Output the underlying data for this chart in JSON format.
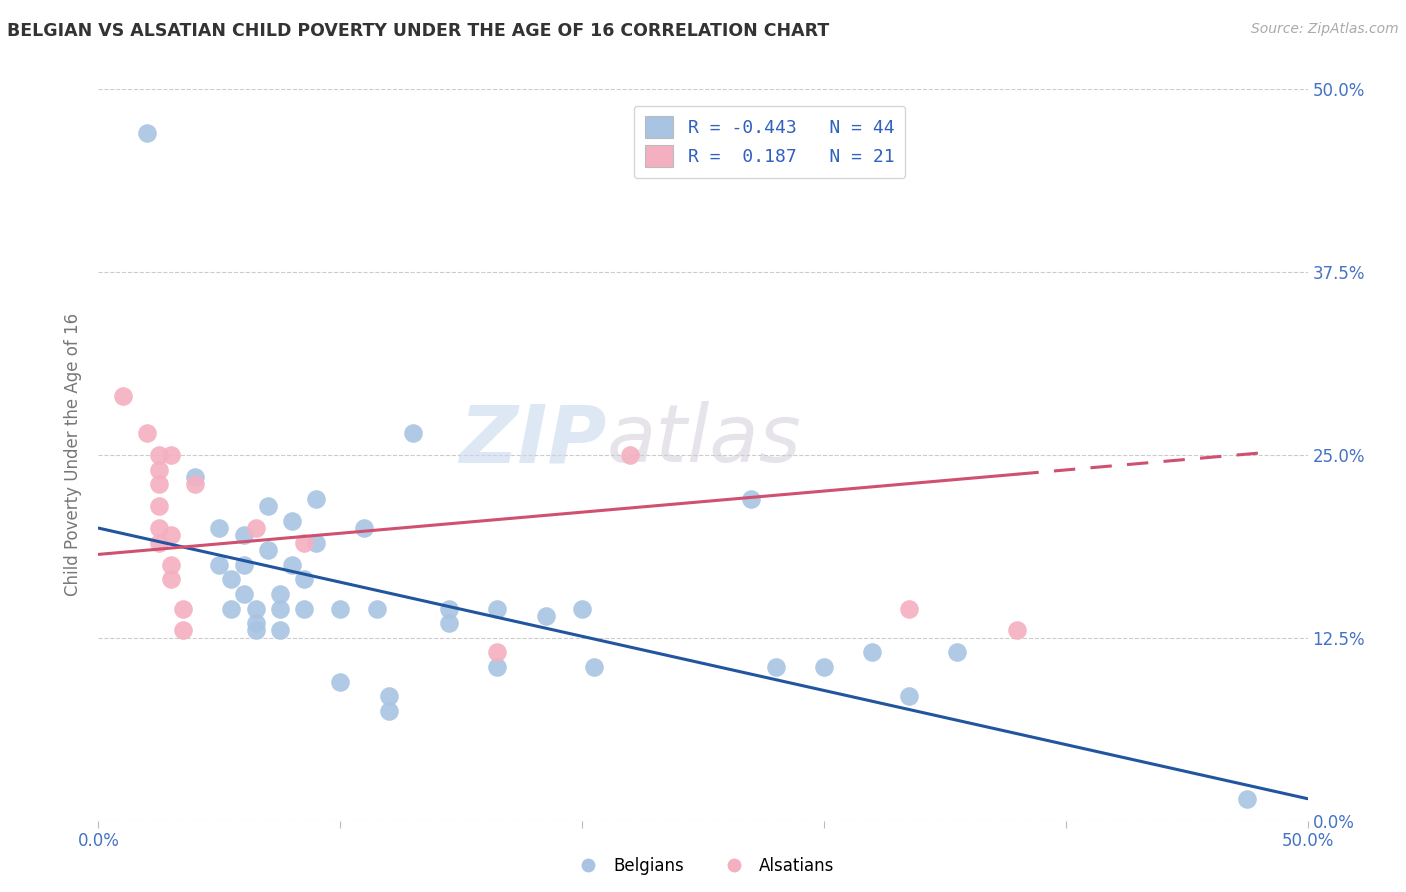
{
  "title": "BELGIAN VS ALSATIAN CHILD POVERTY UNDER THE AGE OF 16 CORRELATION CHART",
  "source": "Source: ZipAtlas.com",
  "ylabel": "Child Poverty Under the Age of 16",
  "ytick_labels": [
    "0.0%",
    "12.5%",
    "25.0%",
    "37.5%",
    "50.0%"
  ],
  "ytick_values": [
    0.0,
    0.125,
    0.25,
    0.375,
    0.5
  ],
  "xtick_labels": [
    "0.0%",
    "",
    "",
    "",
    "",
    "50.0%"
  ],
  "xtick_values": [
    0.0,
    0.1,
    0.2,
    0.3,
    0.4,
    0.5
  ],
  "xlim": [
    0.0,
    0.5
  ],
  "ylim": [
    0.0,
    0.5
  ],
  "belgian_color": "#a8c4e2",
  "alsatian_color": "#f4b0c0",
  "belgian_line_color": "#2255a0",
  "alsatian_line_color": "#d05070",
  "axis_label_color": "#4472c4",
  "watermark_text": "ZIPatlas",
  "legend_line1": "R = -0.443   N = 44",
  "legend_line2": "R =  0.187   N = 21",
  "bottom_legend1": "Belgians",
  "bottom_legend2": "Alsatians",
  "belgian_scatter": [
    [
      0.02,
      0.47
    ],
    [
      0.04,
      0.235
    ],
    [
      0.05,
      0.2
    ],
    [
      0.05,
      0.175
    ],
    [
      0.055,
      0.165
    ],
    [
      0.055,
      0.145
    ],
    [
      0.06,
      0.195
    ],
    [
      0.06,
      0.175
    ],
    [
      0.06,
      0.155
    ],
    [
      0.065,
      0.145
    ],
    [
      0.065,
      0.135
    ],
    [
      0.065,
      0.13
    ],
    [
      0.07,
      0.215
    ],
    [
      0.07,
      0.185
    ],
    [
      0.075,
      0.155
    ],
    [
      0.075,
      0.145
    ],
    [
      0.075,
      0.13
    ],
    [
      0.08,
      0.205
    ],
    [
      0.08,
      0.175
    ],
    [
      0.085,
      0.165
    ],
    [
      0.085,
      0.145
    ],
    [
      0.09,
      0.22
    ],
    [
      0.09,
      0.19
    ],
    [
      0.1,
      0.145
    ],
    [
      0.1,
      0.095
    ],
    [
      0.11,
      0.2
    ],
    [
      0.115,
      0.145
    ],
    [
      0.12,
      0.085
    ],
    [
      0.12,
      0.075
    ],
    [
      0.13,
      0.265
    ],
    [
      0.145,
      0.145
    ],
    [
      0.145,
      0.135
    ],
    [
      0.165,
      0.145
    ],
    [
      0.165,
      0.105
    ],
    [
      0.185,
      0.14
    ],
    [
      0.2,
      0.145
    ],
    [
      0.205,
      0.105
    ],
    [
      0.27,
      0.22
    ],
    [
      0.28,
      0.105
    ],
    [
      0.3,
      0.105
    ],
    [
      0.32,
      0.115
    ],
    [
      0.335,
      0.085
    ],
    [
      0.355,
      0.115
    ],
    [
      0.475,
      0.015
    ]
  ],
  "alsatian_scatter": [
    [
      0.01,
      0.29
    ],
    [
      0.02,
      0.265
    ],
    [
      0.025,
      0.25
    ],
    [
      0.025,
      0.24
    ],
    [
      0.025,
      0.23
    ],
    [
      0.025,
      0.215
    ],
    [
      0.025,
      0.2
    ],
    [
      0.025,
      0.19
    ],
    [
      0.03,
      0.25
    ],
    [
      0.03,
      0.195
    ],
    [
      0.03,
      0.175
    ],
    [
      0.03,
      0.165
    ],
    [
      0.035,
      0.145
    ],
    [
      0.035,
      0.13
    ],
    [
      0.04,
      0.23
    ],
    [
      0.065,
      0.2
    ],
    [
      0.085,
      0.19
    ],
    [
      0.165,
      0.115
    ],
    [
      0.22,
      0.25
    ],
    [
      0.335,
      0.145
    ],
    [
      0.38,
      0.13
    ]
  ],
  "belgian_trend_x": [
    0.0,
    0.5
  ],
  "belgian_trend_y": [
    0.2,
    0.015
  ],
  "alsatian_trend_x": [
    0.0,
    0.485
  ],
  "alsatian_trend_y": [
    0.182,
    0.252
  ]
}
